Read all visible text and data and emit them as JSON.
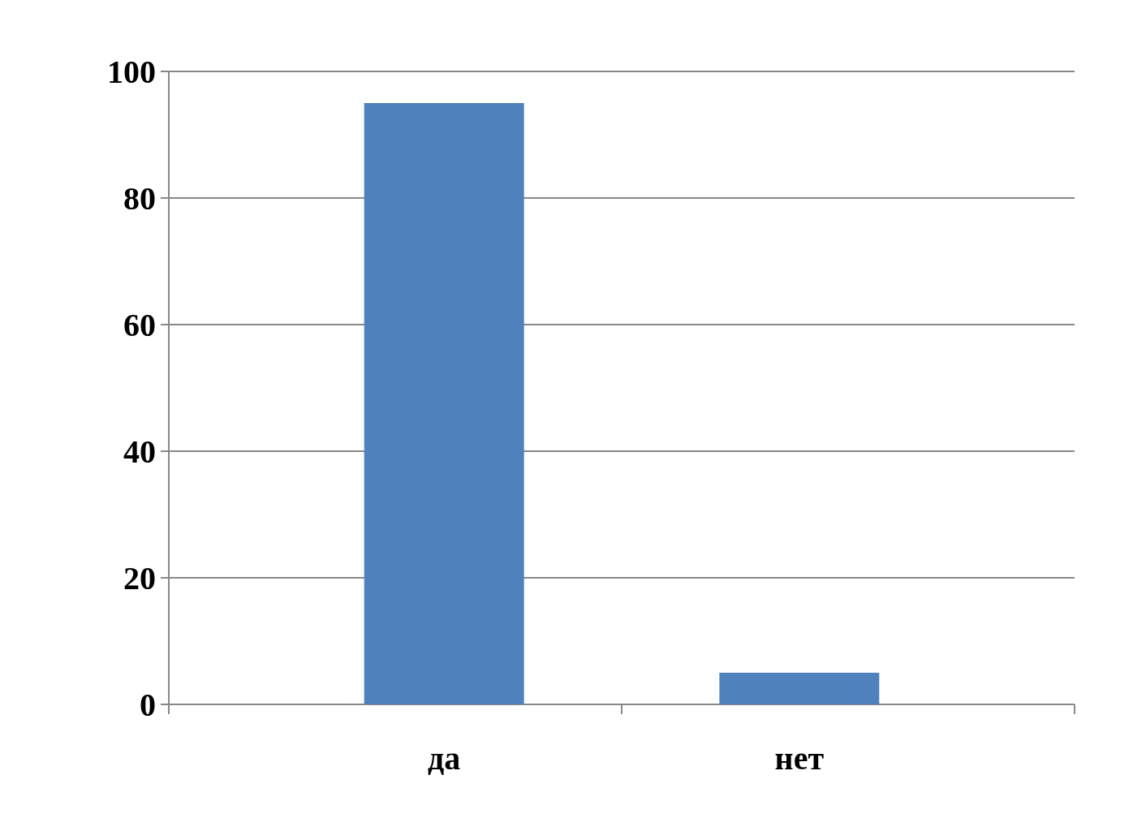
{
  "chart_data": {
    "type": "bar",
    "categories": [
      "да",
      "нет"
    ],
    "values": [
      95,
      5
    ],
    "color": "#4f81bd",
    "ylim": [
      0,
      100
    ],
    "yticks": [
      0,
      20,
      40,
      60,
      80,
      100
    ],
    "grid": "y"
  }
}
